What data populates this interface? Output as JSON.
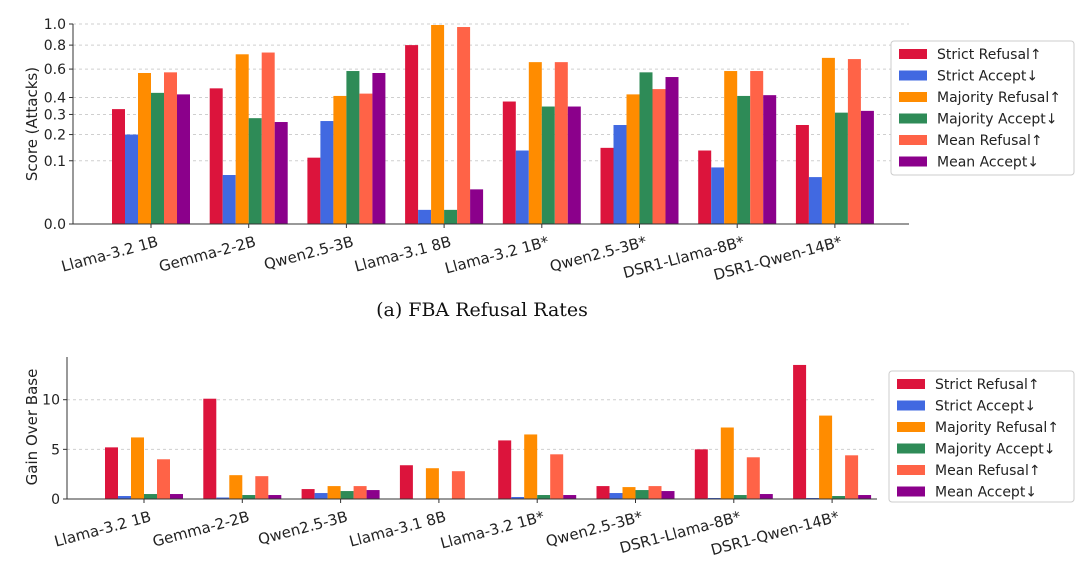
{
  "colors": {
    "strict_refusal": "#dc143c",
    "strict_accept": "#4169e1",
    "majority_refusal": "#ff8c00",
    "majority_accept": "#2e8b57",
    "mean_refusal": "#ff6347",
    "mean_accept": "#8b008b"
  },
  "chart_data": [
    {
      "type": "bar",
      "title": "",
      "caption": "(a) FBA Refusal Rates",
      "xlabel": "",
      "ylabel": "Score (Attacks)",
      "yscale": "sqrt",
      "ylim": [
        0,
        1.0
      ],
      "yticks": [
        "0.0",
        "0.1",
        "0.2",
        "0.3",
        "0.4",
        "0.6",
        "0.8",
        "1.0"
      ],
      "grid": true,
      "legend_position": "right",
      "categories": [
        "Llama-3.2 1B",
        "Gemma-2-2B",
        "Qwen2.5-3B",
        "Llama-3.1 8B",
        "Llama-3.2 1B*",
        "Qwen2.5-3B*",
        "DSR1-Llama-8B*",
        "DSR1-Qwen-14B*"
      ],
      "series": [
        {
          "name": "Strict Refusal↑",
          "color_key": "strict_refusal",
          "values": [
            0.33,
            0.46,
            0.11,
            0.8,
            0.375,
            0.145,
            0.135,
            0.245
          ]
        },
        {
          "name": "Strict Accept↓",
          "color_key": "strict_accept",
          "values": [
            0.2,
            0.06,
            0.265,
            0.005,
            0.135,
            0.245,
            0.08,
            0.055
          ]
        },
        {
          "name": "Majority Refusal↑",
          "color_key": "majority_refusal",
          "values": [
            0.57,
            0.72,
            0.41,
            0.99,
            0.655,
            0.42,
            0.585,
            0.69
          ]
        },
        {
          "name": "Majority Accept↓",
          "color_key": "majority_accept",
          "values": [
            0.43,
            0.28,
            0.585,
            0.005,
            0.345,
            0.575,
            0.41,
            0.31
          ]
        },
        {
          "name": "Mean Refusal↑",
          "color_key": "mean_refusal",
          "values": [
            0.575,
            0.735,
            0.425,
            0.97,
            0.655,
            0.455,
            0.585,
            0.68
          ]
        },
        {
          "name": "Mean Accept↓",
          "color_key": "mean_accept",
          "values": [
            0.42,
            0.26,
            0.57,
            0.03,
            0.345,
            0.54,
            0.415,
            0.32
          ]
        }
      ]
    },
    {
      "type": "bar",
      "title": "",
      "xlabel": "",
      "ylabel": "Gain Over Base",
      "ylim": [
        0,
        14.3
      ],
      "yticks": [
        "0",
        "5",
        "10"
      ],
      "grid": true,
      "legend_position": "right",
      "categories": [
        "Llama-3.2 1B",
        "Gemma-2-2B",
        "Qwen2.5-3B",
        "Llama-3.1 8B",
        "Llama-3.2 1B*",
        "Qwen2.5-3B*",
        "DSR1-Llama-8B*",
        "DSR1-Qwen-14B*"
      ],
      "series": [
        {
          "name": "Strict Refusal↑",
          "color_key": "strict_refusal",
          "values": [
            5.2,
            10.1,
            1.0,
            3.4,
            5.9,
            1.3,
            5.0,
            13.5
          ]
        },
        {
          "name": "Strict Accept↓",
          "color_key": "strict_accept",
          "values": [
            0.3,
            0.15,
            0.6,
            0.0,
            0.2,
            0.6,
            0.1,
            0.1
          ]
        },
        {
          "name": "Majority Refusal↑",
          "color_key": "majority_refusal",
          "values": [
            6.2,
            2.4,
            1.3,
            3.1,
            6.5,
            1.2,
            7.2,
            8.4
          ]
        },
        {
          "name": "Majority Accept↓",
          "color_key": "majority_accept",
          "values": [
            0.5,
            0.4,
            0.8,
            0.0,
            0.4,
            0.9,
            0.4,
            0.3
          ]
        },
        {
          "name": "Mean Refusal↑",
          "color_key": "mean_refusal",
          "values": [
            4.0,
            2.3,
            1.3,
            2.8,
            4.5,
            1.3,
            4.2,
            4.4
          ]
        },
        {
          "name": "Mean Accept↓",
          "color_key": "mean_accept",
          "values": [
            0.5,
            0.4,
            0.9,
            0.0,
            0.4,
            0.8,
            0.5,
            0.4
          ]
        }
      ]
    }
  ]
}
